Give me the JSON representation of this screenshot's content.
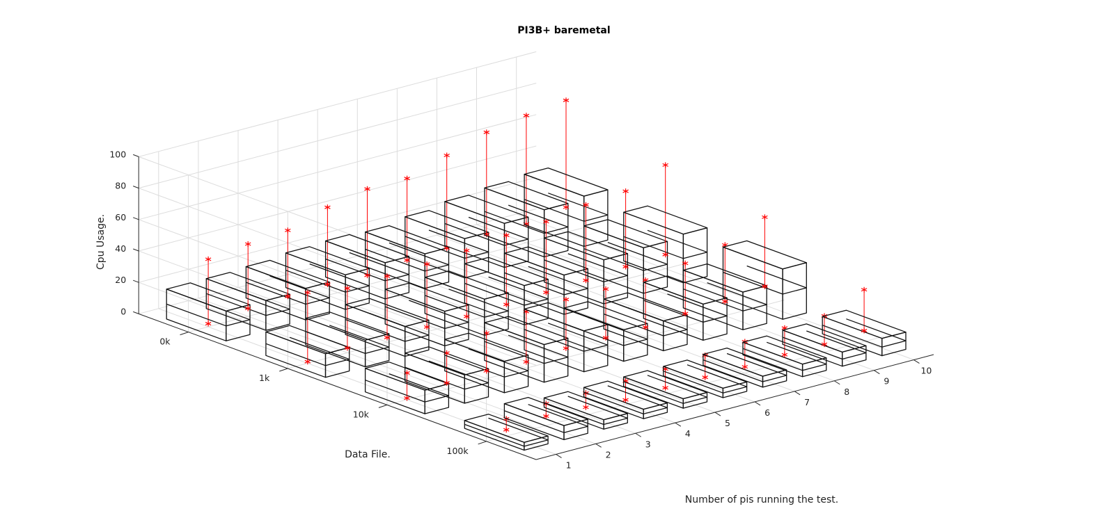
{
  "chart_data": {
    "type": "bar3",
    "title": "PI3B+ baremetal",
    "xlabel": "Number of pis running the test.",
    "ylabel": "Data File.",
    "zlabel": "Cpu Usage.",
    "x_ticks": [
      "1",
      "2",
      "3",
      "4",
      "5",
      "6",
      "7",
      "8",
      "9",
      "10"
    ],
    "y_ticks": [
      "0k",
      "1k",
      "10k",
      "100k"
    ],
    "z_ticks": [
      "0",
      "20",
      "40",
      "60",
      "80",
      "100"
    ],
    "zlim": [
      0,
      100
    ],
    "grid": true,
    "error_markers": "red vertical lines with asterisk at min and max",
    "series": [
      {
        "name": "0k",
        "values": [
          19,
          19,
          20,
          22,
          23,
          22,
          25,
          28,
          30,
          32
        ],
        "err_low": [
          2,
          5,
          6,
          7,
          6,
          9,
          10,
          12,
          12,
          16
        ],
        "err_high": [
          43,
          46,
          48,
          56,
          61,
          61,
          69,
          77,
          81,
          84
        ]
      },
      {
        "name": "1k",
        "values": [
          15,
          17,
          19,
          22,
          23,
          25,
          25,
          28,
          29,
          31
        ],
        "err_low": [
          1,
          3,
          3,
          3,
          3,
          4,
          5,
          6,
          8,
          9
        ],
        "err_high": [
          45,
          41,
          42,
          43,
          45,
          48,
          50,
          54,
          56,
          66
        ]
      },
      {
        "name": "10k",
        "values": [
          15,
          18,
          20,
          24,
          26,
          20,
          19,
          23,
          24,
          32
        ],
        "err_low": [
          1,
          4,
          5,
          4,
          6,
          6,
          6,
          8,
          9,
          12
        ],
        "err_high": [
          17,
          23,
          29,
          36,
          37,
          37,
          36,
          40,
          45,
          56
        ]
      },
      {
        "name": "100k",
        "values": [
          5,
          9,
          6,
          6,
          6,
          6,
          7,
          8,
          9,
          11
        ],
        "err_low": [
          4,
          6,
          5,
          3,
          4,
          4,
          4,
          5,
          5,
          7
        ],
        "err_high": [
          11,
          14,
          14,
          15,
          16,
          18,
          20,
          22,
          23,
          33
        ]
      }
    ],
    "colors": [
      "#9c8fe6",
      "#8f9cf5",
      "#84b8f5",
      "#6cc8e6",
      "#7fd6cc",
      "#a4dd8f",
      "#e0cf72",
      "#f2d57a",
      "#f6e76a",
      "#fbf56a"
    ]
  }
}
